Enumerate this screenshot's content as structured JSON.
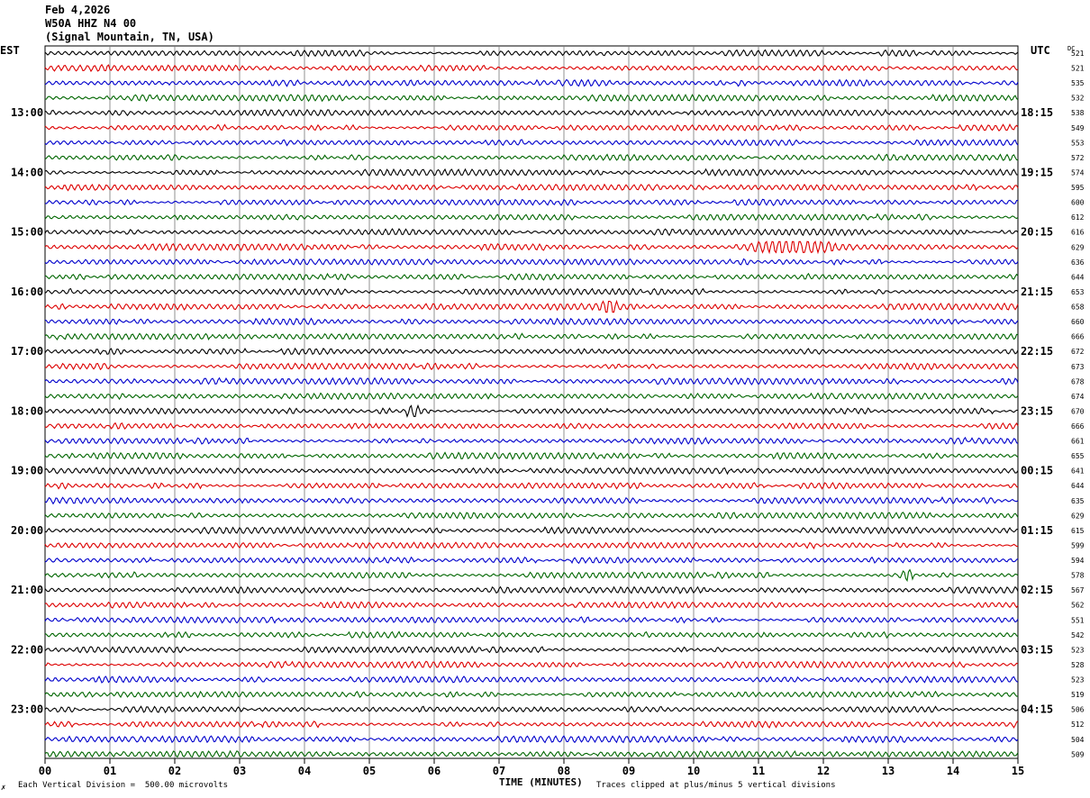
{
  "header": {
    "date": "Feb 4,2026",
    "station": "W50A HHZ N4 00",
    "location": "(Signal Mountain, TN, USA)"
  },
  "left_tz": "EST",
  "right_tz": "UTC",
  "dc_label": "DC",
  "footer": {
    "scale": "Each Vertical Division =  500.00 microvolts",
    "clip": "Traces clipped at plus/minus 5 vertical divisions",
    "corner": "✗"
  },
  "colors": {
    "trace_cycle": [
      "#000000",
      "#dd0000",
      "#0000cc",
      "#006600"
    ],
    "grid": "#000000"
  },
  "chart_data": {
    "type": "line",
    "title": "Feb 4,2026 W50A HHZ N4 00 (Signal Mountain, TN, USA)",
    "xlabel": "TIME (MINUTES)",
    "xlim": [
      0,
      15
    ],
    "x_ticks": [
      "00",
      "01",
      "02",
      "03",
      "04",
      "05",
      "06",
      "07",
      "08",
      "09",
      "10",
      "11",
      "12",
      "13",
      "14",
      "15"
    ],
    "left_hour_labels": [
      {
        "row": 4,
        "label": "13:00"
      },
      {
        "row": 8,
        "label": "14:00"
      },
      {
        "row": 12,
        "label": "15:00"
      },
      {
        "row": 16,
        "label": "16:00"
      },
      {
        "row": 20,
        "label": "17:00"
      },
      {
        "row": 24,
        "label": "18:00"
      },
      {
        "row": 28,
        "label": "19:00"
      },
      {
        "row": 32,
        "label": "20:00"
      },
      {
        "row": 36,
        "label": "21:00"
      },
      {
        "row": 40,
        "label": "22:00"
      },
      {
        "row": 44,
        "label": "23:00"
      }
    ],
    "right_hour_labels": [
      {
        "row": 4,
        "label": "18:15"
      },
      {
        "row": 8,
        "label": "19:15"
      },
      {
        "row": 12,
        "label": "20:15"
      },
      {
        "row": 16,
        "label": "21:15"
      },
      {
        "row": 20,
        "label": "22:15"
      },
      {
        "row": 24,
        "label": "23:15"
      },
      {
        "row": 28,
        "label": "00:15"
      },
      {
        "row": 32,
        "label": "01:15"
      },
      {
        "row": 36,
        "label": "02:15"
      },
      {
        "row": 40,
        "label": "03:15"
      },
      {
        "row": 44,
        "label": "04:15"
      }
    ],
    "dc_offsets": [
      521,
      521,
      535,
      532,
      538,
      549,
      553,
      572,
      574,
      595,
      600,
      612,
      616,
      629,
      636,
      644,
      653,
      658,
      660,
      666,
      672,
      673,
      678,
      674,
      670,
      666,
      661,
      655,
      641,
      644,
      635,
      629,
      615,
      599,
      594,
      578,
      567,
      562,
      551,
      542,
      523,
      528,
      523,
      519,
      506,
      512,
      504,
      509
    ],
    "events": [
      {
        "row": 13,
        "minute": 11.5,
        "amplitude": "large"
      },
      {
        "row": 17,
        "minute": 8.7,
        "amplitude": "medium"
      },
      {
        "row": 24,
        "minute": 5.65,
        "amplitude": "medium"
      },
      {
        "row": 35,
        "minute": 13.3,
        "amplitude": "small"
      }
    ]
  }
}
